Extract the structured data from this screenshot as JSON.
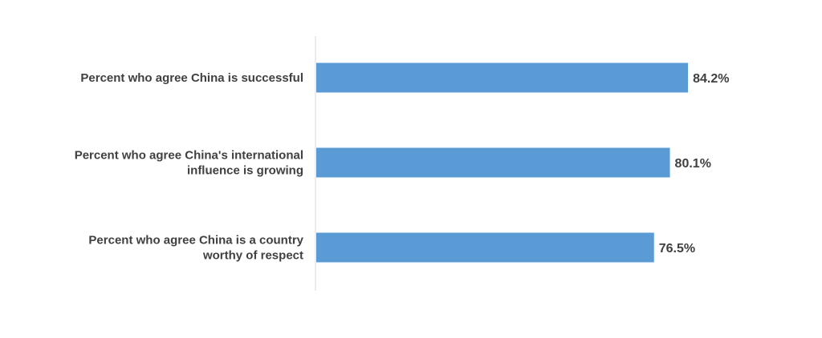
{
  "chart_data": {
    "type": "bar",
    "orientation": "horizontal",
    "title": "",
    "xlabel": "",
    "ylabel": "",
    "xlim": [
      0,
      100
    ],
    "grid": false,
    "legend": "none",
    "categories": [
      [
        "Percent who agree China is successful"
      ],
      [
        "Percent who agree China's international",
        "influence is growing"
      ],
      [
        "Percent who agree China is a country",
        "worthy of respect"
      ]
    ],
    "values": [
      84.2,
      80.1,
      76.5
    ],
    "value_labels": [
      "84.2%",
      "80.1%",
      "76.5%"
    ],
    "colors": {
      "bar": "#5b9bd5",
      "text": "#404040",
      "axis": "#d9d9d9"
    }
  }
}
